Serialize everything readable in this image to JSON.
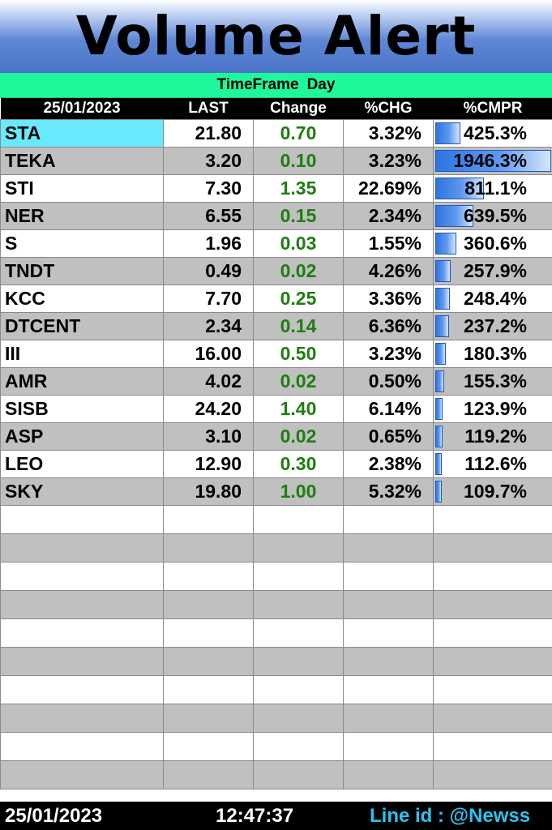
{
  "title": "Volume Alert",
  "timeframe": {
    "label": "TimeFrame",
    "value": "Day"
  },
  "columns": [
    "25/01/2023",
    "LAST",
    "Change",
    "%CHG",
    "%CMPR"
  ],
  "rows": [
    {
      "symbol": "STA",
      "last": "21.80",
      "change": "0.70",
      "pct_chg": "3.32%",
      "cmpr": "425.3%",
      "cmpr_value": 425.3
    },
    {
      "symbol": "TEKA",
      "last": "3.20",
      "change": "0.10",
      "pct_chg": "3.23%",
      "cmpr": "1946.3%",
      "cmpr_value": 1946.3
    },
    {
      "symbol": "STI",
      "last": "7.30",
      "change": "1.35",
      "pct_chg": "22.69%",
      "cmpr": "811.1%",
      "cmpr_value": 811.1
    },
    {
      "symbol": "NER",
      "last": "6.55",
      "change": "0.15",
      "pct_chg": "2.34%",
      "cmpr": "639.5%",
      "cmpr_value": 639.5
    },
    {
      "symbol": "S",
      "last": "1.96",
      "change": "0.03",
      "pct_chg": "1.55%",
      "cmpr": "360.6%",
      "cmpr_value": 360.6
    },
    {
      "symbol": "TNDT",
      "last": "0.49",
      "change": "0.02",
      "pct_chg": "4.26%",
      "cmpr": "257.9%",
      "cmpr_value": 257.9
    },
    {
      "symbol": "KCC",
      "last": "7.70",
      "change": "0.25",
      "pct_chg": "3.36%",
      "cmpr": "248.4%",
      "cmpr_value": 248.4
    },
    {
      "symbol": "DTCENT",
      "last": "2.34",
      "change": "0.14",
      "pct_chg": "6.36%",
      "cmpr": "237.2%",
      "cmpr_value": 237.2
    },
    {
      "symbol": "III",
      "last": "16.00",
      "change": "0.50",
      "pct_chg": "3.23%",
      "cmpr": "180.3%",
      "cmpr_value": 180.3
    },
    {
      "symbol": "AMR",
      "last": "4.02",
      "change": "0.02",
      "pct_chg": "0.50%",
      "cmpr": "155.3%",
      "cmpr_value": 155.3
    },
    {
      "symbol": "SISB",
      "last": "24.20",
      "change": "1.40",
      "pct_chg": "6.14%",
      "cmpr": "123.9%",
      "cmpr_value": 123.9
    },
    {
      "symbol": "ASP",
      "last": "3.10",
      "change": "0.02",
      "pct_chg": "0.65%",
      "cmpr": "119.2%",
      "cmpr_value": 119.2
    },
    {
      "symbol": "LEO",
      "last": "12.90",
      "change": "0.30",
      "pct_chg": "2.38%",
      "cmpr": "112.6%",
      "cmpr_value": 112.6
    },
    {
      "symbol": "SKY",
      "last": "19.80",
      "change": "1.00",
      "pct_chg": "5.32%",
      "cmpr": "109.7%",
      "cmpr_value": 109.7
    }
  ],
  "cmpr_max": 1946.3,
  "highlight_color": "#69e9fb",
  "change_color": "#1f7d12",
  "footer": {
    "date": "25/01/2023",
    "time": "12:47:37",
    "line_id": "Line id : @Newss"
  }
}
